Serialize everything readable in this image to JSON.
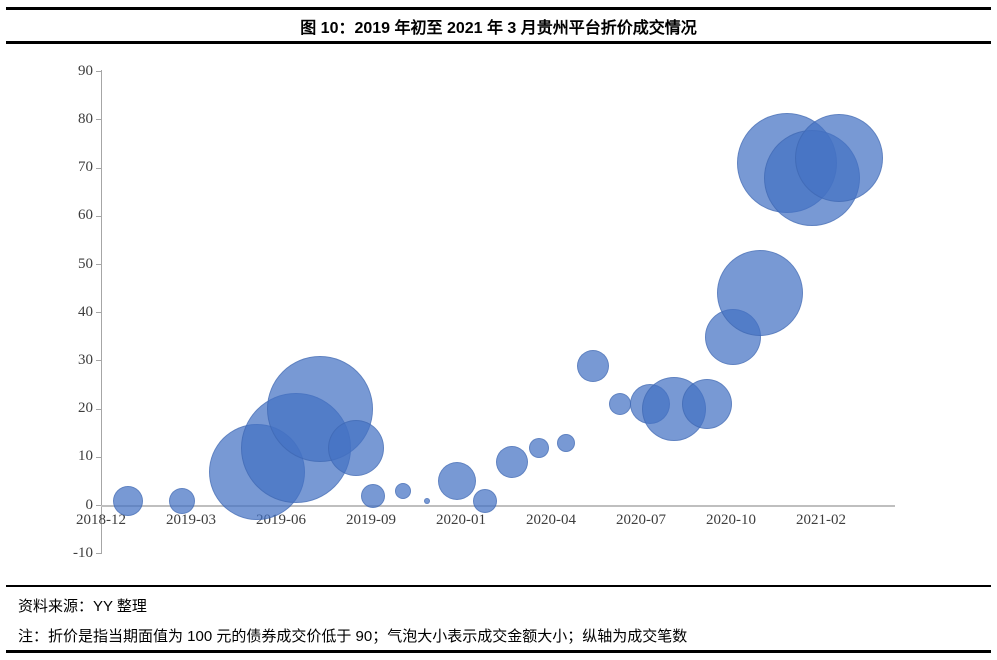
{
  "figure": {
    "title": "图 10：2019 年初至 2021 年 3 月贵州平台折价成交情况",
    "source": "资料来源：YY 整理",
    "note": "注：折价是指当期面值为 100 元的债券成交价低于 90；气泡大小表示成交金额大小；纵轴为成交笔数"
  },
  "chart_data": {
    "type": "bubble",
    "title": "图 10：2019 年初至 2021 年 3 月贵州平台折价成交情况",
    "xlabel": "",
    "ylabel": "成交笔数",
    "size_represents": "成交金额大小",
    "grid": false,
    "legend": false,
    "bubble_color": "#4472C4",
    "bubble_opacity": 0.72,
    "bubble_border_color": "#3A5EA6",
    "x_axis": {
      "tick_labels": [
        "2018-12",
        "2019-03",
        "2019-06",
        "2019-09",
        "2020-01",
        "2020-04",
        "2020-07",
        "2020-10",
        "2021-02"
      ],
      "tick_months_from_2018_12": [
        0,
        3,
        6,
        9,
        13,
        16,
        19,
        22,
        26
      ]
    },
    "y_axis": {
      "ticks": [
        90,
        80,
        70,
        60,
        50,
        40,
        30,
        20,
        10,
        0,
        -10
      ],
      "min": -10,
      "max": 90
    },
    "points": [
      {
        "date": "2019-01",
        "m": 0.9,
        "count": 1,
        "r": 15
      },
      {
        "date": "2019-03",
        "m": 2.7,
        "count": 1,
        "r": 13
      },
      {
        "date": "2019-05",
        "m": 5.2,
        "count": 7,
        "r": 48
      },
      {
        "date": "2019-06",
        "m": 6.5,
        "count": 12,
        "r": 55
      },
      {
        "date": "2019-07",
        "m": 7.3,
        "count": 20,
        "r": 53
      },
      {
        "date": "2019-08",
        "m": 8.5,
        "count": 12,
        "r": 28
      },
      {
        "date": "2019-09",
        "m": 9.1,
        "count": 2,
        "r": 12
      },
      {
        "date": "2019-10",
        "m": 10.4,
        "count": 3,
        "r": 8
      },
      {
        "date": "2019-11",
        "m": 11.5,
        "count": 1,
        "r": 3
      },
      {
        "date": "2020-01",
        "m": 12.8,
        "count": 5,
        "r": 19
      },
      {
        "date": "2020-02",
        "m": 13.8,
        "count": 1,
        "r": 12
      },
      {
        "date": "2020-03",
        "m": 14.7,
        "count": 9,
        "r": 16
      },
      {
        "date": "2020-04",
        "m": 15.6,
        "count": 12,
        "r": 10
      },
      {
        "date": "2020-05",
        "m": 16.5,
        "count": 13,
        "r": 9
      },
      {
        "date": "2020-05",
        "m": 17.4,
        "count": 29,
        "r": 16
      },
      {
        "date": "2020-06",
        "m": 18.3,
        "count": 21,
        "r": 11
      },
      {
        "date": "2020-07",
        "m": 19.3,
        "count": 21,
        "r": 20
      },
      {
        "date": "2020-08",
        "m": 20.1,
        "count": 20,
        "r": 32
      },
      {
        "date": "2020-09",
        "m": 21.2,
        "count": 21,
        "r": 25
      },
      {
        "date": "2020-10",
        "m": 22.1,
        "count": 35,
        "r": 28
      },
      {
        "date": "2020-11",
        "m": 23.3,
        "count": 44,
        "r": 43
      },
      {
        "date": "2020-12",
        "m": 24.5,
        "count": 71,
        "r": 50
      },
      {
        "date": "2021-01",
        "m": 25.6,
        "count": 68,
        "r": 48
      },
      {
        "date": "2021-03",
        "m": 26.8,
        "count": 72,
        "r": 44
      }
    ]
  }
}
